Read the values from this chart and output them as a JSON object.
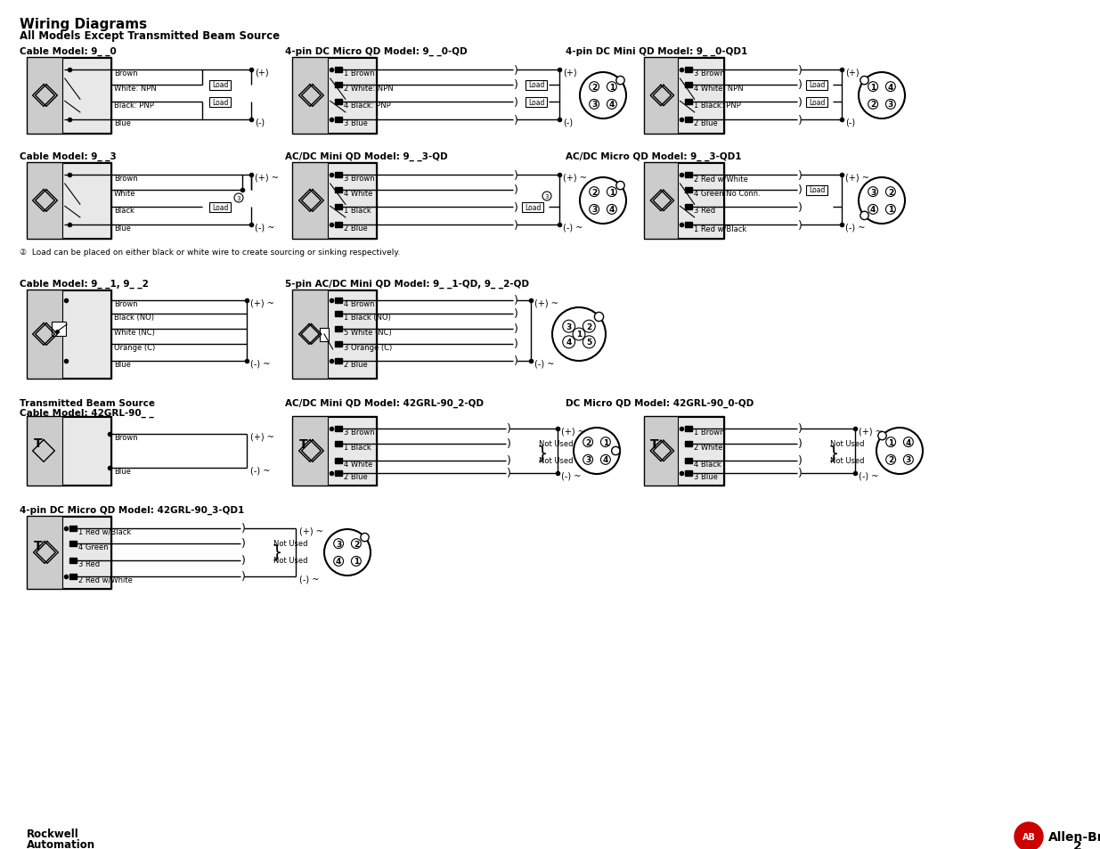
{
  "title": "Wiring Diagrams",
  "subtitle": "All Models Except Transmitted Beam Source",
  "page_number": "2",
  "bg": "#ffffff",
  "footnote": "②  Load can be placed on either black or white wire to create sourcing or sinking respectively."
}
